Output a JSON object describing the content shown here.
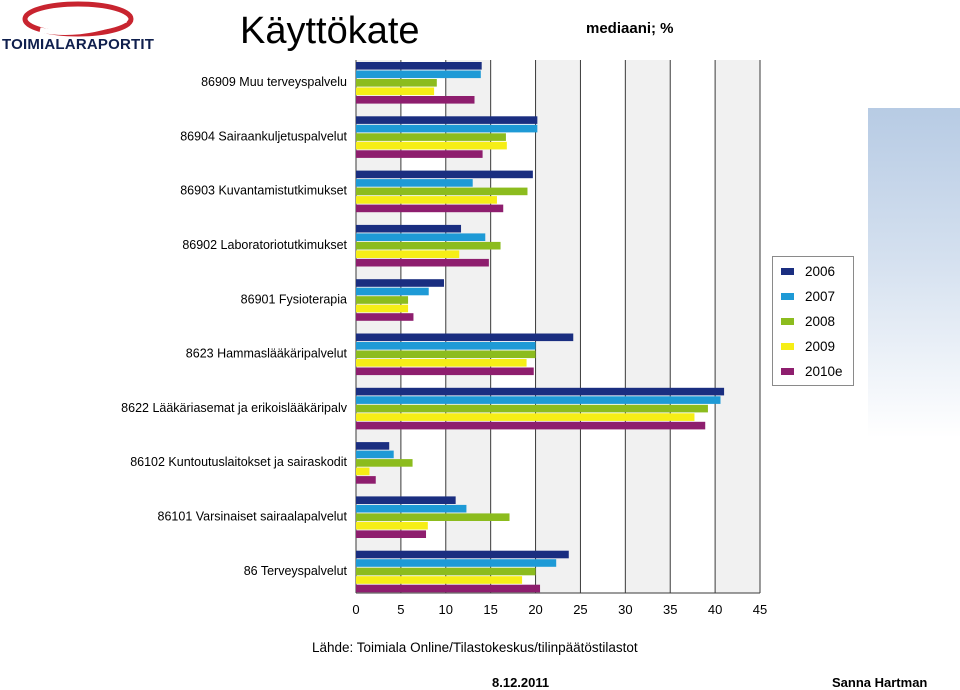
{
  "header": {
    "logo_text": "TOIMIALARAPORTIT",
    "title": "Käyttökate",
    "subtitle": "mediaani; %"
  },
  "footer": {
    "source": "Lähde: Toimiala Online/Tilastokeskus/tilinpäätöstilastot",
    "date": "8.12.2011",
    "author": "Sanna Hartman"
  },
  "colors": {
    "2006": "#1a2e80",
    "2007": "#1e9ad6",
    "2008": "#8cbc1e",
    "2009": "#f6ee16",
    "2010e": "#8e1e6e",
    "logo_red": "#c8242f",
    "logo_navy": "#0f1f4d"
  },
  "chart_data": {
    "type": "bar",
    "orientation": "horizontal",
    "title": "Käyttökate",
    "subtitle": "mediaani; %",
    "categories": [
      "86909 Muu terveyspalvelu",
      "86904 Sairaankuljetuspalvelut",
      "86903 Kuvantamistutkimukset",
      "86902 Laboratoriotutkimukset",
      "86901 Fysioterapia",
      "8623 Hammaslääkäripalvelut",
      "8622 Lääkäriasemat ja erikoislääkäripalv",
      "86102 Kuntoutuslaitokset ja sairaskodit",
      "86101 Varsinaiset sairaalapalvelut",
      "86 Terveyspalvelut"
    ],
    "series": [
      {
        "name": "2006",
        "color": "#1a2e80",
        "values": [
          14,
          20.2,
          19.7,
          11.7,
          9.8,
          24.2,
          41,
          3.7,
          11.1,
          23.7
        ]
      },
      {
        "name": "2007",
        "color": "#1e9ad6",
        "values": [
          13.9,
          20.2,
          13,
          14.4,
          8.1,
          20,
          40.6,
          4.2,
          12.3,
          22.3
        ]
      },
      {
        "name": "2008",
        "color": "#8cbc1e",
        "values": [
          9,
          16.7,
          19.1,
          16.1,
          5.8,
          20,
          39.2,
          6.3,
          17.1,
          20
        ]
      },
      {
        "name": "2009",
        "color": "#f6ee16",
        "values": [
          8.7,
          16.8,
          15.7,
          11.5,
          5.8,
          19,
          37.7,
          1.5,
          8,
          18.5
        ]
      },
      {
        "name": "2010e",
        "color": "#8e1e6e",
        "values": [
          13.2,
          14.1,
          16.4,
          14.8,
          6.4,
          19.8,
          38.9,
          2.2,
          7.8,
          20.5
        ]
      }
    ],
    "xlim": [
      0,
      45
    ],
    "x_ticks": [
      "0",
      "5",
      "10",
      "15",
      "20",
      "25",
      "30",
      "35",
      "40",
      "45"
    ],
    "grid": true,
    "legend_position": "right"
  }
}
